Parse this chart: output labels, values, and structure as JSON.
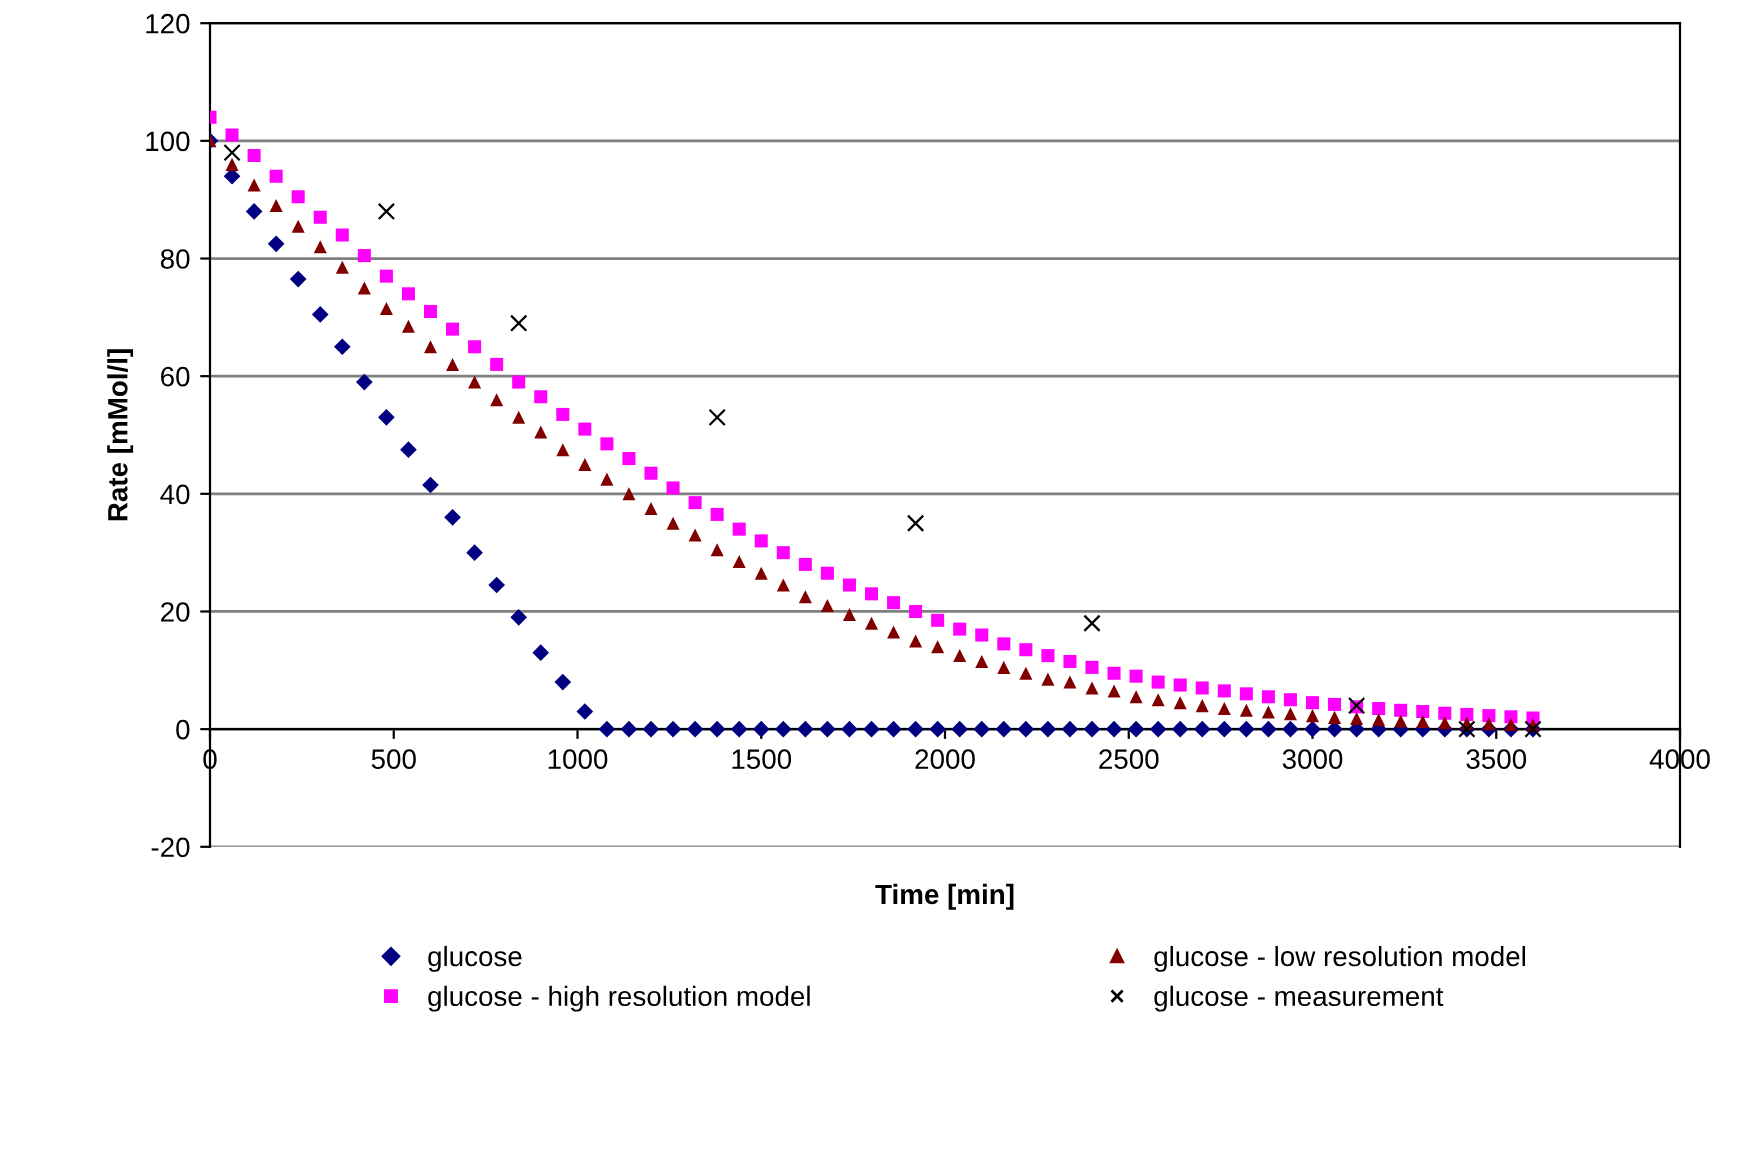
{
  "chart_data": {
    "type": "scatter",
    "xlabel": "Time [min]",
    "ylabel": "Rate [mMol/l]",
    "x": [
      0,
      60,
      120,
      180,
      240,
      300,
      360,
      420,
      480,
      540,
      600,
      660,
      720,
      780,
      840,
      900,
      960,
      1020,
      1080,
      1140,
      1200,
      1260,
      1320,
      1380,
      1440,
      1500,
      1560,
      1620,
      1680,
      1740,
      1800,
      1860,
      1920,
      1980,
      2040,
      2100,
      2160,
      2220,
      2280,
      2340,
      2400,
      2460,
      2520,
      2580,
      2640,
      2700,
      2760,
      2820,
      2880,
      2940,
      3000,
      3060,
      3120,
      3180,
      3240,
      3300,
      3360,
      3420,
      3480,
      3540,
      3600
    ],
    "xlim": [
      0,
      4000
    ],
    "xticks": [
      0,
      500,
      1000,
      1500,
      2000,
      2500,
      3000,
      3500,
      4000
    ],
    "ylim": [
      -20,
      120
    ],
    "yticks": [
      -20,
      0,
      20,
      40,
      60,
      80,
      100,
      120
    ],
    "grid": "y",
    "legend": "bottom",
    "series": [
      {
        "name": "glucose",
        "color": "#000080",
        "marker": "diamond",
        "values": [
          100,
          94,
          88,
          82.5,
          76.5,
          70.5,
          65,
          59,
          53,
          47.5,
          41.5,
          36,
          30,
          24.5,
          19,
          13,
          8,
          3,
          0,
          0,
          0,
          0,
          0,
          0,
          0,
          0,
          0,
          0,
          0,
          0,
          0,
          0,
          0,
          0,
          0,
          0,
          0,
          0,
          0,
          0,
          0,
          0,
          0,
          0,
          0,
          0,
          0,
          0,
          0,
          0,
          0,
          0,
          0,
          0,
          0,
          0,
          0,
          0,
          0,
          0,
          0
        ]
      },
      {
        "name": "glucose - high resolution model",
        "color": "#ff00ff",
        "marker": "square",
        "values": [
          104,
          101,
          97.5,
          94,
          90.5,
          87,
          84,
          80.5,
          77,
          74,
          71,
          68,
          65,
          62,
          59,
          56.5,
          53.5,
          51,
          48.5,
          46,
          43.5,
          41,
          38.5,
          36.5,
          34,
          32,
          30,
          28,
          26.5,
          24.5,
          23,
          21.5,
          20,
          18.5,
          17,
          16,
          14.5,
          13.5,
          12.5,
          11.5,
          10.5,
          9.5,
          9,
          8,
          7.5,
          7,
          6.5,
          6,
          5.5,
          5,
          4.5,
          4.2,
          3.8,
          3.5,
          3.2,
          3,
          2.7,
          2.5,
          2.3,
          2.1,
          1.9
        ]
      },
      {
        "name": "glucose - low resolution model",
        "color": "#800000",
        "marker": "triangle",
        "values": [
          100,
          96,
          92.5,
          89,
          85.5,
          82,
          78.5,
          75,
          71.5,
          68.5,
          65,
          62,
          59,
          56,
          53,
          50.5,
          47.5,
          45,
          42.5,
          40,
          37.5,
          35,
          33,
          30.5,
          28.5,
          26.5,
          24.5,
          22.5,
          21,
          19.5,
          18,
          16.5,
          15,
          14,
          12.5,
          11.5,
          10.5,
          9.5,
          8.5,
          8,
          7,
          6.5,
          5.5,
          5,
          4.5,
          4,
          3.5,
          3.2,
          2.9,
          2.6,
          2.3,
          2,
          1.8,
          1.6,
          1.4,
          1.3,
          1.1,
          1,
          0.9,
          0.8,
          0.7
        ]
      },
      {
        "name": "glucose - measurement",
        "color": "#000000",
        "marker": "cross",
        "x": [
          60,
          480,
          840,
          1380,
          1920,
          2400,
          3120,
          3420,
          3600
        ],
        "values": [
          98,
          88,
          69,
          53,
          35,
          18,
          4,
          0,
          0
        ]
      }
    ]
  }
}
